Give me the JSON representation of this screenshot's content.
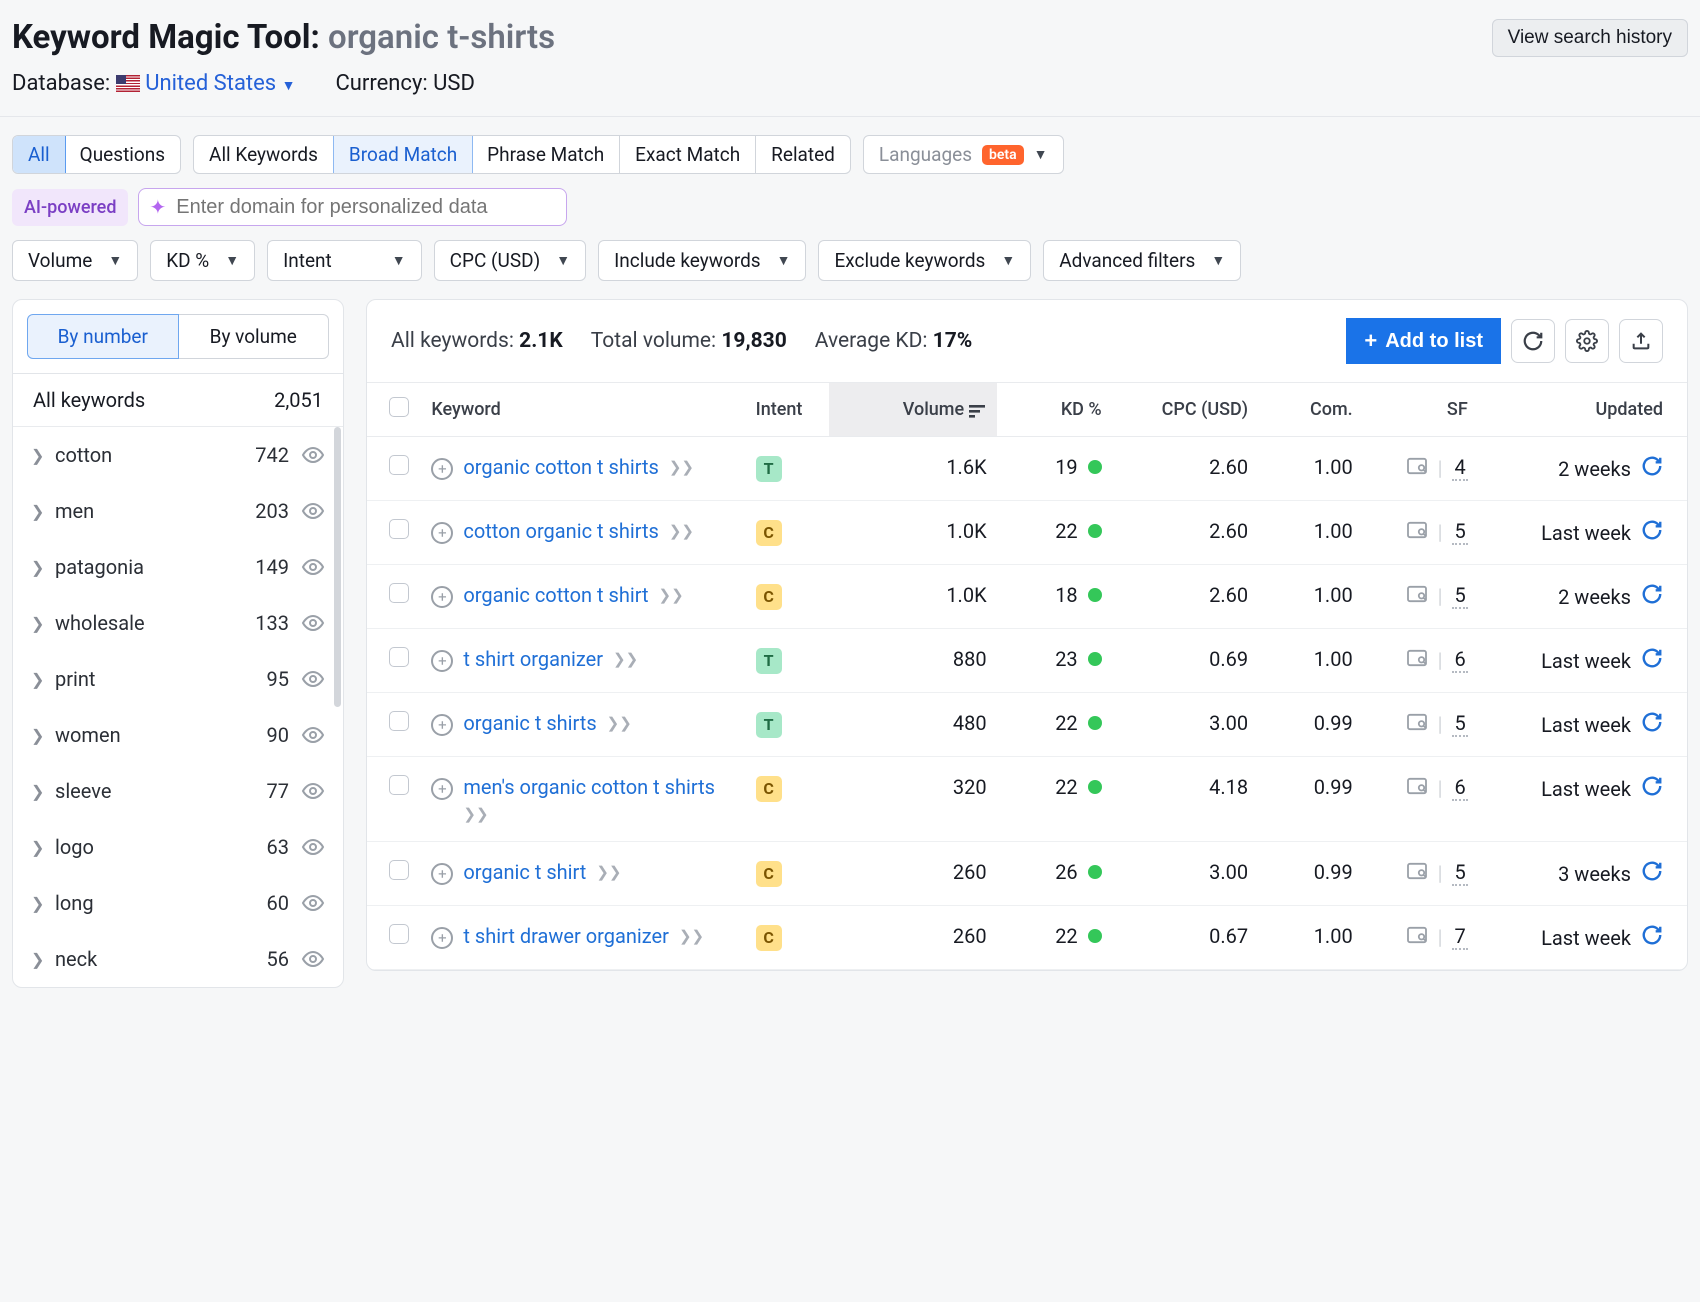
{
  "header": {
    "title_prefix": "Keyword Magic Tool:",
    "query": "organic t-shirts",
    "search_history_btn": "View search history",
    "database_label": "Database:",
    "database_value": "United States",
    "currency_label": "Currency: USD"
  },
  "scope_tabs": {
    "all": "All",
    "questions": "Questions"
  },
  "match_tabs": {
    "all": "All Keywords",
    "broad": "Broad Match",
    "phrase": "Phrase Match",
    "exact": "Exact Match",
    "related": "Related"
  },
  "languages": {
    "label": "Languages",
    "beta": "beta"
  },
  "ai": {
    "chip": "AI-powered",
    "placeholder": "Enter domain for personalized data"
  },
  "filters": {
    "volume": "Volume",
    "kd": "KD %",
    "intent": "Intent",
    "cpc": "CPC (USD)",
    "include": "Include keywords",
    "exclude": "Exclude keywords",
    "advanced": "Advanced filters"
  },
  "sidebar": {
    "tab_number": "By number",
    "tab_volume": "By volume",
    "all_label": "All keywords",
    "all_count": "2,051",
    "items": [
      {
        "name": "cotton",
        "count": "742"
      },
      {
        "name": "men",
        "count": "203"
      },
      {
        "name": "patagonia",
        "count": "149"
      },
      {
        "name": "wholesale",
        "count": "133"
      },
      {
        "name": "print",
        "count": "95"
      },
      {
        "name": "women",
        "count": "90"
      },
      {
        "name": "sleeve",
        "count": "77"
      },
      {
        "name": "logo",
        "count": "63"
      },
      {
        "name": "long",
        "count": "60"
      },
      {
        "name": "neck",
        "count": "56"
      }
    ]
  },
  "summary": {
    "all_kw_label": "All keywords:",
    "all_kw": "2.1K",
    "total_vol_label": "Total volume:",
    "total_vol": "19,830",
    "avg_kd_label": "Average KD:",
    "avg_kd": "17%",
    "add_to_list": "Add to list"
  },
  "columns": {
    "keyword": "Keyword",
    "intent": "Intent",
    "volume": "Volume",
    "kd": "KD %",
    "cpc": "CPC (USD)",
    "com": "Com.",
    "sf": "SF",
    "updated": "Updated"
  },
  "rows": [
    {
      "kw": "organic cotton t shirts",
      "intent": "T",
      "volume": "1.6K",
      "kd": "19",
      "cpc": "2.60",
      "com": "1.00",
      "sf": "4",
      "updated": "2 weeks"
    },
    {
      "kw": "cotton organic t shirts",
      "intent": "C",
      "volume": "1.0K",
      "kd": "22",
      "cpc": "2.60",
      "com": "1.00",
      "sf": "5",
      "updated": "Last week"
    },
    {
      "kw": "organic cotton t shirt",
      "intent": "C",
      "volume": "1.0K",
      "kd": "18",
      "cpc": "2.60",
      "com": "1.00",
      "sf": "5",
      "updated": "2 weeks"
    },
    {
      "kw": "t shirt organizer",
      "intent": "T",
      "volume": "880",
      "kd": "23",
      "cpc": "0.69",
      "com": "1.00",
      "sf": "6",
      "updated": "Last week"
    },
    {
      "kw": "organic t shirts",
      "intent": "T",
      "volume": "480",
      "kd": "22",
      "cpc": "3.00",
      "com": "0.99",
      "sf": "5",
      "updated": "Last week"
    },
    {
      "kw": "men's organic cotton t shirts",
      "intent": "C",
      "volume": "320",
      "kd": "22",
      "cpc": "4.18",
      "com": "0.99",
      "sf": "6",
      "updated": "Last week"
    },
    {
      "kw": "organic t shirt",
      "intent": "C",
      "volume": "260",
      "kd": "26",
      "cpc": "3.00",
      "com": "0.99",
      "sf": "5",
      "updated": "3 weeks"
    },
    {
      "kw": "t shirt drawer organizer",
      "intent": "C",
      "volume": "260",
      "kd": "22",
      "cpc": "0.67",
      "com": "1.00",
      "sf": "7",
      "updated": "Last week"
    }
  ]
}
